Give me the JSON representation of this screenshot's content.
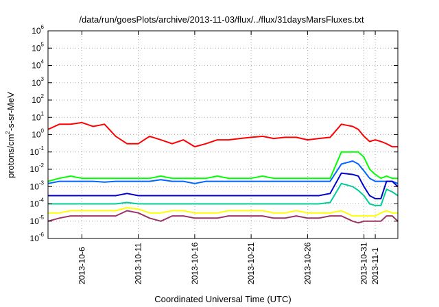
{
  "chart_data": {
    "type": "line",
    "title": "/data/run/goesPlots/archive/2013-11-03/flux/../flux/31daysMarsFluxes.txt",
    "xlabel": "Coordinated Universal Time (UTC)",
    "ylabel": {
      "pre": "protons/cm",
      "sup": "2",
      "post": "-s-sr-MeV"
    },
    "x_unit": "days since 2013-10-03 00:00 UTC",
    "xlim": [
      0,
      31
    ],
    "ylim": [
      1e-06,
      1000000.0
    ],
    "yscale": "log",
    "grid": true,
    "legend": "none",
    "yticks": [
      {
        "value": 1e-06,
        "base": "10",
        "exp": "-6"
      },
      {
        "value": 1e-05,
        "base": "10",
        "exp": "-5"
      },
      {
        "value": 0.0001,
        "base": "10",
        "exp": "-4"
      },
      {
        "value": 0.001,
        "base": "10",
        "exp": "-3"
      },
      {
        "value": 0.01,
        "base": "10",
        "exp": "-2"
      },
      {
        "value": 0.1,
        "base": "10",
        "exp": "-1"
      },
      {
        "value": 1,
        "base": "10",
        "exp": "0"
      },
      {
        "value": 10,
        "base": "10",
        "exp": "1"
      },
      {
        "value": 100,
        "base": "10",
        "exp": "2"
      },
      {
        "value": 1000,
        "base": "10",
        "exp": "3"
      },
      {
        "value": 10000,
        "base": "10",
        "exp": "4"
      },
      {
        "value": 100000,
        "base": "10",
        "exp": "5"
      },
      {
        "value": 1000000,
        "base": "10",
        "exp": "6"
      }
    ],
    "xticks": [
      {
        "x": 3,
        "label": "2013-10-6"
      },
      {
        "x": 8,
        "label": "2013-10-11"
      },
      {
        "x": 13,
        "label": "2013-10-16"
      },
      {
        "x": 18,
        "label": "2013-10-21"
      },
      {
        "x": 23,
        "label": "2013-10-26"
      },
      {
        "x": 28,
        "label": "2013-10-31"
      },
      {
        "x": 29,
        "label": "2013-11-1"
      }
    ],
    "x": [
      0,
      1,
      2,
      3,
      4,
      5,
      6,
      7,
      8,
      9,
      10,
      11,
      12,
      13,
      14,
      15,
      16,
      17,
      18,
      19,
      20,
      21,
      22,
      23,
      24,
      25,
      26,
      27,
      27.5,
      28,
      28.5,
      29,
      29.5,
      30,
      30.5,
      31
    ],
    "series": [
      {
        "color": "#ff0000",
        "values": [
          2,
          4,
          4,
          5,
          3,
          4,
          0.8,
          0.3,
          0.3,
          0.8,
          0.5,
          0.3,
          0.5,
          0.2,
          0.3,
          0.5,
          0.5,
          0.6,
          0.7,
          0.8,
          0.6,
          0.7,
          0.7,
          0.5,
          0.6,
          0.7,
          4,
          3,
          2,
          0.8,
          0.4,
          0.5,
          0.4,
          0.3,
          0.2,
          0.2
        ]
      },
      {
        "color": "#00ff00",
        "values": [
          0.002,
          0.003,
          0.004,
          0.003,
          0.003,
          0.003,
          0.003,
          0.003,
          0.003,
          0.003,
          0.004,
          0.003,
          0.003,
          0.003,
          0.003,
          0.004,
          0.003,
          0.003,
          0.003,
          0.004,
          0.003,
          0.003,
          0.003,
          0.003,
          0.003,
          0.003,
          0.1,
          0.1,
          0.1,
          0.05,
          0.01,
          0.005,
          0.003,
          0.004,
          0.003,
          0.003
        ]
      },
      {
        "color": "#0066ff",
        "values": [
          0.0015,
          0.002,
          0.002,
          0.002,
          0.002,
          0.0018,
          0.002,
          0.002,
          0.002,
          0.002,
          0.0025,
          0.002,
          0.002,
          0.0015,
          0.002,
          0.002,
          0.002,
          0.002,
          0.002,
          0.002,
          0.002,
          0.002,
          0.002,
          0.002,
          0.002,
          0.002,
          0.02,
          0.03,
          0.02,
          0.008,
          0.003,
          0.002,
          0.002,
          0.002,
          0.002,
          0.0015
        ]
      },
      {
        "color": "#0000cc",
        "values": [
          0.0003,
          0.0003,
          0.0003,
          0.0003,
          0.0003,
          0.0003,
          0.0003,
          0.0004,
          0.0003,
          0.0003,
          0.0003,
          0.0003,
          0.0003,
          0.0003,
          0.0003,
          0.0003,
          0.0003,
          0.0003,
          0.0003,
          0.0003,
          0.0003,
          0.0003,
          0.0003,
          0.0003,
          0.0003,
          0.0004,
          0.006,
          0.005,
          0.004,
          0.001,
          0.0003,
          0.0002,
          0.0002,
          0.002,
          0.002,
          0.001
        ]
      },
      {
        "color": "#00cc99",
        "values": [
          0.0001,
          0.0001,
          0.0001,
          0.0001,
          0.0001,
          0.0001,
          0.0001,
          0.00012,
          0.0001,
          0.0001,
          0.0001,
          0.0001,
          0.0001,
          0.0001,
          0.0001,
          0.0001,
          0.0001,
          0.0001,
          0.0001,
          0.0001,
          0.0001,
          0.0001,
          0.0001,
          0.0001,
          0.0001,
          0.00012,
          0.0015,
          0.001,
          0.0006,
          0.0003,
          0.0001,
          8e-05,
          8e-05,
          0.0007,
          0.0005,
          0.0003
        ]
      },
      {
        "color": "#ffff00",
        "values": [
          3e-05,
          3e-05,
          4e-05,
          4e-05,
          4e-05,
          4e-05,
          4e-05,
          6e-05,
          5e-05,
          3e-05,
          3e-05,
          4e-05,
          4e-05,
          3e-05,
          3e-05,
          3e-05,
          4e-05,
          4e-05,
          4e-05,
          4e-05,
          3e-05,
          3e-05,
          4e-05,
          3e-05,
          3e-05,
          3e-05,
          4e-05,
          2e-05,
          2e-05,
          2e-05,
          2e-05,
          2e-05,
          3e-05,
          4e-05,
          3e-05,
          3e-05
        ]
      },
      {
        "color": "#993366",
        "values": [
          1e-05,
          1.5e-05,
          2e-05,
          2e-05,
          2e-05,
          2e-05,
          2e-05,
          4e-05,
          3e-05,
          1.5e-05,
          1e-05,
          2e-05,
          2e-05,
          1.5e-05,
          1.5e-05,
          1.5e-05,
          2e-05,
          2e-05,
          2e-05,
          2e-05,
          1.5e-05,
          1.5e-05,
          2e-05,
          1.5e-05,
          1.5e-05,
          2e-05,
          2e-05,
          1e-05,
          8e-06,
          1e-05,
          1e-05,
          1e-05,
          1e-05,
          2e-05,
          2e-05,
          1e-05
        ]
      }
    ]
  }
}
